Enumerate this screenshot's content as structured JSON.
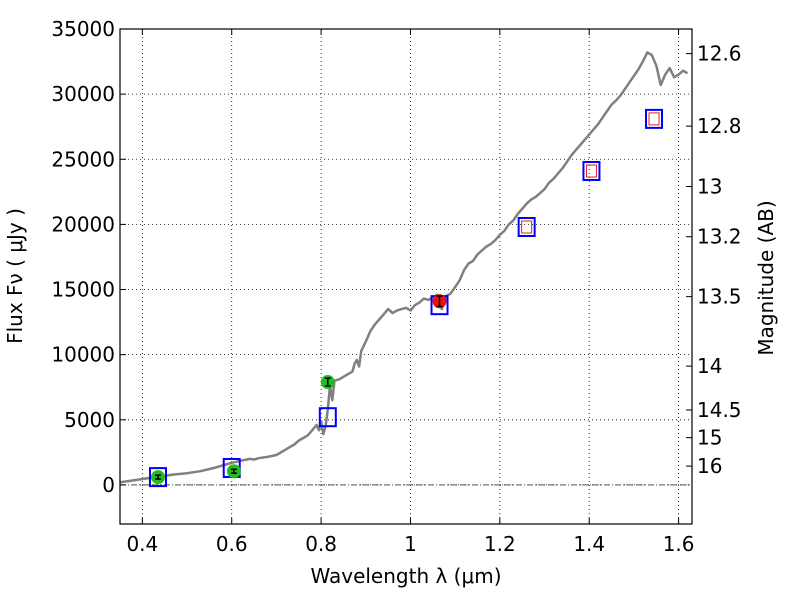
{
  "chart_data": {
    "type": "line",
    "xlabel": "Wavelength  λ (μm)",
    "ylabel": "Flux  Fν  ( μJy )",
    "y2label": "Magnitude (AB)",
    "xlim": [
      0.35,
      1.63
    ],
    "ylim": [
      -3000,
      35000
    ],
    "grid": true,
    "x_ticks": [
      0.4,
      0.6,
      0.8,
      1.0,
      1.2,
      1.4,
      1.6
    ],
    "x_tick_labels": [
      "0.4",
      "0.6",
      "0.8",
      "1",
      "1.2",
      "1.4",
      "1.6"
    ],
    "y_ticks": [
      0,
      5000,
      10000,
      15000,
      20000,
      25000,
      30000,
      35000
    ],
    "y_tick_labels": [
      "0",
      "5000",
      "10000",
      "15000",
      "20000",
      "25000",
      "30000",
      "35000"
    ],
    "mag_ticks": [
      12.6,
      12.8,
      13.0,
      13.2,
      13.5,
      14.0,
      14.5,
      15.0,
      16.0
    ],
    "mag_tick_labels": [
      "12.6",
      "12.8",
      "13",
      "13.2",
      "13.5",
      "14",
      "14.5",
      "15",
      "16"
    ],
    "colors": {
      "spectrum": "#808080",
      "model_box": "#0000ff",
      "green_point": "#22bb22",
      "red_point": "#ee1111",
      "open_point": "#dd2222",
      "zero_line": "#555555",
      "grid": "#000000"
    },
    "series": [
      {
        "kind": "spectrum",
        "x": [
          0.35,
          0.38,
          0.41,
          0.44,
          0.47,
          0.5,
          0.53,
          0.56,
          0.58,
          0.6,
          0.62,
          0.64,
          0.65,
          0.66,
          0.68,
          0.7,
          0.72,
          0.73,
          0.74,
          0.75,
          0.76,
          0.77,
          0.78,
          0.79,
          0.795,
          0.8,
          0.805,
          0.81,
          0.815,
          0.82,
          0.825,
          0.83,
          0.84,
          0.85,
          0.86,
          0.87,
          0.875,
          0.88,
          0.885,
          0.89,
          0.9,
          0.91,
          0.92,
          0.93,
          0.94,
          0.95,
          0.96,
          0.97,
          0.98,
          0.99,
          1.0,
          1.01,
          1.02,
          1.03,
          1.04,
          1.05,
          1.06,
          1.07,
          1.08,
          1.09,
          1.1,
          1.11,
          1.12,
          1.13,
          1.14,
          1.15,
          1.16,
          1.17,
          1.18,
          1.19,
          1.2,
          1.21,
          1.22,
          1.23,
          1.24,
          1.25,
          1.26,
          1.27,
          1.28,
          1.29,
          1.3,
          1.31,
          1.32,
          1.33,
          1.34,
          1.35,
          1.36,
          1.37,
          1.38,
          1.39,
          1.4,
          1.41,
          1.42,
          1.43,
          1.44,
          1.45,
          1.46,
          1.47,
          1.48,
          1.49,
          1.5,
          1.51,
          1.52,
          1.53,
          1.54,
          1.55,
          1.56,
          1.57,
          1.58,
          1.59,
          1.6,
          1.61,
          1.62
        ],
        "y": [
          200,
          350,
          500,
          650,
          800,
          900,
          1050,
          1300,
          1500,
          1700,
          1850,
          2000,
          1950,
          2050,
          2150,
          2300,
          2700,
          2900,
          3100,
          3400,
          3600,
          3800,
          4200,
          4600,
          4200,
          4900,
          3900,
          4500,
          5800,
          7600,
          6500,
          8000,
          8100,
          8300,
          8500,
          8700,
          9300,
          9600,
          9100,
          10300,
          11000,
          11800,
          12300,
          12700,
          13100,
          13500,
          13200,
          13400,
          13500,
          13600,
          13400,
          13800,
          14000,
          14300,
          14200,
          14400,
          14600,
          13500,
          14500,
          14700,
          15200,
          15700,
          16500,
          17000,
          17200,
          17700,
          18000,
          18300,
          18500,
          18800,
          19200,
          19500,
          20000,
          20300,
          20800,
          21200,
          21600,
          21900,
          22100,
          22400,
          22700,
          23200,
          23500,
          23900,
          24300,
          24800,
          25300,
          25700,
          26100,
          26500,
          26900,
          27300,
          27700,
          28200,
          28700,
          29200,
          29500,
          29900,
          30400,
          30900,
          31400,
          31900,
          32500,
          33200,
          33000,
          32200,
          30700,
          31500,
          32000,
          31300,
          31500,
          31800,
          31600
        ]
      },
      {
        "kind": "model_boxes",
        "x": [
          0.435,
          0.6,
          0.815,
          1.065,
          1.26,
          1.405,
          1.545
        ],
        "y": [
          600,
          1300,
          5200,
          13800,
          19800,
          24100,
          28100
        ]
      },
      {
        "kind": "green_points",
        "x": [
          0.435,
          0.605,
          0.815
        ],
        "y": [
          600,
          1050,
          7900
        ],
        "yerr": [
          150,
          150,
          300
        ]
      },
      {
        "kind": "red_points",
        "x": [
          1.065
        ],
        "y": [
          14100
        ],
        "yerr": [
          400
        ]
      },
      {
        "kind": "open_points",
        "x": [
          1.26,
          1.405,
          1.545
        ],
        "y": [
          19800,
          24100,
          28100
        ]
      }
    ]
  }
}
